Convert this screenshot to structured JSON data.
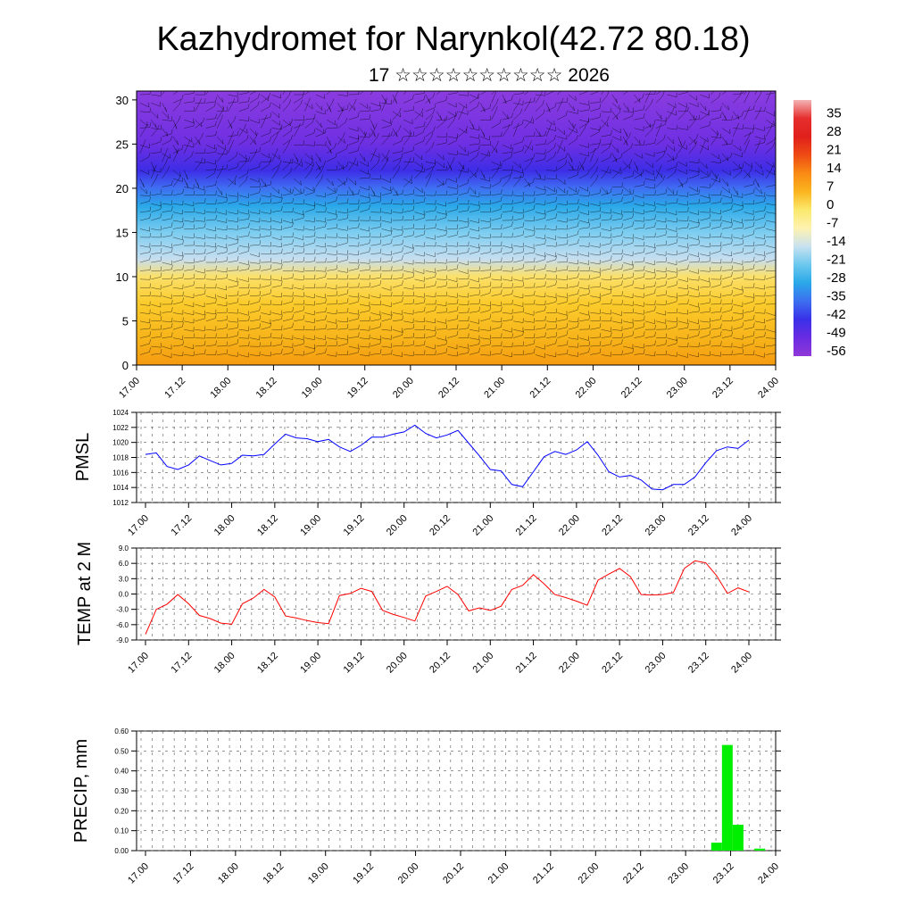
{
  "title": "Kazhydromet for Narynkol(42.72 80.18)",
  "subtitle": "17 ☆☆☆☆☆☆☆☆☆☆ 2026",
  "time_labels": [
    "17.00",
    "17.12",
    "18.00",
    "18.12",
    "19.00",
    "19.12",
    "20.00",
    "20.12",
    "21.00",
    "21.12",
    "22.00",
    "22.12",
    "23.00",
    "23.12",
    "24.00"
  ],
  "chart_data": [
    {
      "type": "heatmap",
      "name": "cross-section",
      "yticks": [
        0,
        5,
        10,
        15,
        20,
        25,
        30
      ],
      "ylim": [
        0,
        31
      ],
      "colorbar": {
        "labels": [
          "35",
          "28",
          "21",
          "14",
          "7",
          "0",
          "-7",
          "-14",
          "-21",
          "-28",
          "-35",
          "-42",
          "-49",
          "-56"
        ],
        "colors": [
          "#f4b4b4",
          "#e62e2e",
          "#e0201c",
          "#ee4a14",
          "#f98a14",
          "#fbb41e",
          "#fbe96c",
          "#fef2b0",
          "#c8e2f0",
          "#6cc8ee",
          "#2aa8e8",
          "#3c6ef0",
          "#3a30e8",
          "#6a2ce2",
          "#9038d8"
        ]
      },
      "layers": [
        {
          "level": 0,
          "color": "#f59a10"
        },
        {
          "level": 3,
          "color": "#f7b41a"
        },
        {
          "level": 7,
          "color": "#fbcb2c"
        },
        {
          "level": 10,
          "color": "#fbe06a"
        },
        {
          "level": 12,
          "color": "#c6def0"
        },
        {
          "level": 15,
          "color": "#7dcdf0"
        },
        {
          "level": 18,
          "color": "#2aa8e8"
        },
        {
          "level": 20,
          "color": "#3f6ff2"
        },
        {
          "level": 22,
          "color": "#3d2de6"
        },
        {
          "level": 25,
          "color": "#6e2fe2"
        },
        {
          "level": 31,
          "color": "#8b3ce0"
        }
      ]
    },
    {
      "type": "line",
      "name": "PMSL",
      "ylabel": "PMSL",
      "ylim": [
        1012,
        1024
      ],
      "yticks": [
        "1012",
        "1014",
        "1016",
        "1018",
        "1020",
        "1022",
        "1024"
      ],
      "color": "#0000ff",
      "x": [
        0,
        1,
        2,
        3,
        4,
        5,
        6,
        7,
        8,
        9,
        10,
        11,
        12,
        13,
        14,
        15,
        16,
        17,
        18,
        19,
        20,
        21,
        22,
        23,
        24,
        25,
        26,
        27,
        28,
        29,
        30,
        31,
        32,
        33,
        34,
        35,
        36,
        37,
        38,
        39,
        40,
        41,
        42,
        43,
        44,
        45,
        46,
        47,
        48,
        49,
        50,
        51,
        52,
        53,
        54,
        55,
        56
      ],
      "values": [
        1018.4,
        1018.6,
        1016.8,
        1016.4,
        1017.0,
        1018.2,
        1017.6,
        1017.0,
        1017.2,
        1018.3,
        1018.2,
        1018.4,
        1019.8,
        1021.1,
        1020.6,
        1020.5,
        1020.1,
        1020.4,
        1019.4,
        1018.8,
        1019.6,
        1020.7,
        1020.7,
        1021.1,
        1021.4,
        1022.3,
        1021.2,
        1020.6,
        1021.0,
        1021.6,
        1019.9,
        1018.2,
        1016.4,
        1016.2,
        1014.4,
        1014.1,
        1016.1,
        1018.1,
        1018.8,
        1018.4,
        1019.0,
        1020.1,
        1018.3,
        1016.1,
        1015.4,
        1015.6,
        1015.0,
        1013.8,
        1013.7,
        1014.4,
        1014.4,
        1015.4,
        1017.3,
        1018.9,
        1019.4,
        1019.2,
        1020.3
      ]
    },
    {
      "type": "line",
      "name": "TEMP at 2 M",
      "ylabel": "TEMP at 2 M",
      "ylim": [
        -9,
        9
      ],
      "yticks": [
        "-9.0",
        "-6.0",
        "-3.0",
        "0.0",
        "3.0",
        "6.0",
        "9.0"
      ],
      "color": "#ff0000",
      "x": [
        0,
        1,
        2,
        3,
        4,
        5,
        6,
        7,
        8,
        9,
        10,
        11,
        12,
        13,
        14,
        15,
        16,
        17,
        18,
        19,
        20,
        21,
        22,
        23,
        24,
        25,
        26,
        27,
        28,
        29,
        30,
        31,
        32,
        33,
        34,
        35,
        36,
        37,
        38,
        39,
        40,
        41,
        42,
        43,
        44,
        45,
        46,
        47,
        48,
        49,
        50,
        51,
        52,
        53,
        54,
        55,
        56
      ],
      "values": [
        -7.9,
        -3.0,
        -2.0,
        -0.1,
        -1.9,
        -4.2,
        -4.8,
        -5.7,
        -5.9,
        -1.9,
        -0.8,
        0.9,
        -0.6,
        -4.3,
        -4.7,
        -5.2,
        -5.6,
        -5.8,
        -0.3,
        0.1,
        1.1,
        0.5,
        -3.2,
        -4.0,
        -4.6,
        -5.3,
        -0.4,
        0.5,
        1.5,
        -0.1,
        -3.3,
        -2.7,
        -3.2,
        -2.4,
        0.9,
        1.7,
        3.8,
        2.0,
        -0.1,
        -0.7,
        -1.4,
        -2.2,
        2.7,
        3.9,
        5.0,
        3.4,
        -0.1,
        -0.2,
        -0.1,
        0.3,
        5.0,
        6.5,
        6.1,
        3.6,
        0.1,
        1.2,
        0.4
      ]
    },
    {
      "type": "bar",
      "name": "PRECIP, mm",
      "ylabel": "PRECIP, mm",
      "ylim": [
        0,
        0.6
      ],
      "yticks": [
        "0.00",
        "0.10",
        "0.20",
        "0.30",
        "0.40",
        "0.50",
        "0.60"
      ],
      "color": "#00ee00",
      "bars": [
        {
          "x": 53,
          "value": 0.04
        },
        {
          "x": 54,
          "value": 0.53
        },
        {
          "x": 55,
          "value": 0.13
        },
        {
          "x": 57,
          "value": 0.01
        }
      ]
    }
  ]
}
